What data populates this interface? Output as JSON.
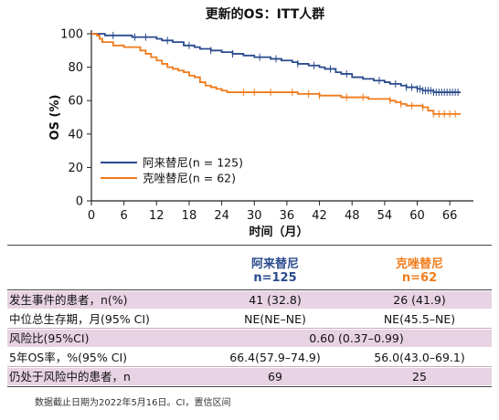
{
  "chart_data": {
    "type": "line",
    "title": "更新的OS：ITT人群",
    "xlabel": "时间（月）",
    "ylabel": "OS (%)",
    "xlim": [
      0,
      69
    ],
    "ylim": [
      0,
      100
    ],
    "x_ticks": [
      0,
      6,
      12,
      18,
      24,
      30,
      36,
      42,
      48,
      54,
      60,
      66
    ],
    "y_ticks": [
      0,
      20,
      40,
      60,
      80,
      100
    ],
    "legend_placement": "lower-left",
    "series": [
      {
        "name": "阿来替尼(n = 125)",
        "color": "#2a4b8d",
        "points": [
          [
            0,
            100
          ],
          [
            2,
            100
          ],
          [
            2.5,
            99
          ],
          [
            7,
            99
          ],
          [
            7.5,
            98
          ],
          [
            11,
            98
          ],
          [
            12,
            97
          ],
          [
            13,
            96
          ],
          [
            15,
            95
          ],
          [
            17,
            93
          ],
          [
            19,
            92
          ],
          [
            20,
            91
          ],
          [
            22,
            90
          ],
          [
            24,
            89
          ],
          [
            26,
            88
          ],
          [
            28,
            87
          ],
          [
            30,
            86
          ],
          [
            33,
            85
          ],
          [
            35,
            84
          ],
          [
            37,
            83
          ],
          [
            38,
            82
          ],
          [
            40,
            81
          ],
          [
            42,
            80
          ],
          [
            43,
            79
          ],
          [
            45,
            77
          ],
          [
            46,
            76
          ],
          [
            48,
            74
          ],
          [
            50,
            73
          ],
          [
            52,
            72
          ],
          [
            54,
            71
          ],
          [
            55,
            70
          ],
          [
            57,
            69
          ],
          [
            58,
            68
          ],
          [
            60,
            67
          ],
          [
            61,
            66
          ],
          [
            63,
            65
          ],
          [
            68,
            65
          ]
        ],
        "censor_x": [
          4,
          8,
          10,
          14,
          18,
          22,
          26,
          31,
          34,
          38,
          41,
          44,
          47,
          53,
          56,
          58,
          59,
          60,
          60.5,
          61,
          61.5,
          62,
          62.5,
          63,
          63.5,
          64,
          64.5,
          65,
          65.5,
          66,
          66.5,
          67,
          67.5
        ]
      },
      {
        "name": "克唑替尼(n = 62)",
        "color": "#f07a1a",
        "points": [
          [
            0,
            100
          ],
          [
            1,
            99
          ],
          [
            1.5,
            97
          ],
          [
            2,
            95
          ],
          [
            4,
            93
          ],
          [
            6,
            92
          ],
          [
            9,
            90
          ],
          [
            10,
            88
          ],
          [
            11,
            86
          ],
          [
            12,
            84
          ],
          [
            13,
            82
          ],
          [
            14,
            80
          ],
          [
            15,
            79
          ],
          [
            16,
            78
          ],
          [
            17,
            77
          ],
          [
            18,
            75
          ],
          [
            19,
            74
          ],
          [
            20,
            71
          ],
          [
            21,
            69
          ],
          [
            22,
            68
          ],
          [
            23,
            67
          ],
          [
            24,
            66
          ],
          [
            25,
            65
          ],
          [
            38,
            64
          ],
          [
            42,
            63
          ],
          [
            46,
            62
          ],
          [
            51,
            61
          ],
          [
            55,
            60
          ],
          [
            56,
            59
          ],
          [
            57,
            58
          ],
          [
            58,
            57
          ],
          [
            61,
            56
          ],
          [
            62,
            54
          ],
          [
            63,
            52
          ],
          [
            68,
            52
          ]
        ],
        "censor_x": [
          28,
          30,
          33,
          37,
          40,
          42,
          47,
          50,
          55,
          57,
          59,
          61,
          63,
          64,
          65,
          66,
          67
        ]
      }
    ]
  },
  "table": {
    "col1_header": "阿来替尼",
    "col1_n": "n=125",
    "col2_header": "克唑替尼",
    "col2_n": "n=62",
    "rows": [
      {
        "label": "发生事件的患者，n(%)",
        "c1": "41 (32.8)",
        "c2": "26 (41.9)"
      },
      {
        "label": "中位总生存期，月(95% CI)",
        "c1": "NE(NE–NE)",
        "c2": "NE(45.5–NE)"
      },
      {
        "label": "风险比(95%CI)",
        "span": "0.60 (0.37–0.99)"
      },
      {
        "label": "5年OS率，%(95% CI)",
        "c1": "66.4(57.9–74.9)",
        "c2": "56.0(43.0–69.1)"
      },
      {
        "label": "仍处于风险中的患者，n",
        "c1": "69",
        "c2": "25"
      }
    ]
  },
  "footnote": "数据截止日期为2022年5月16日。CI，置信区间"
}
